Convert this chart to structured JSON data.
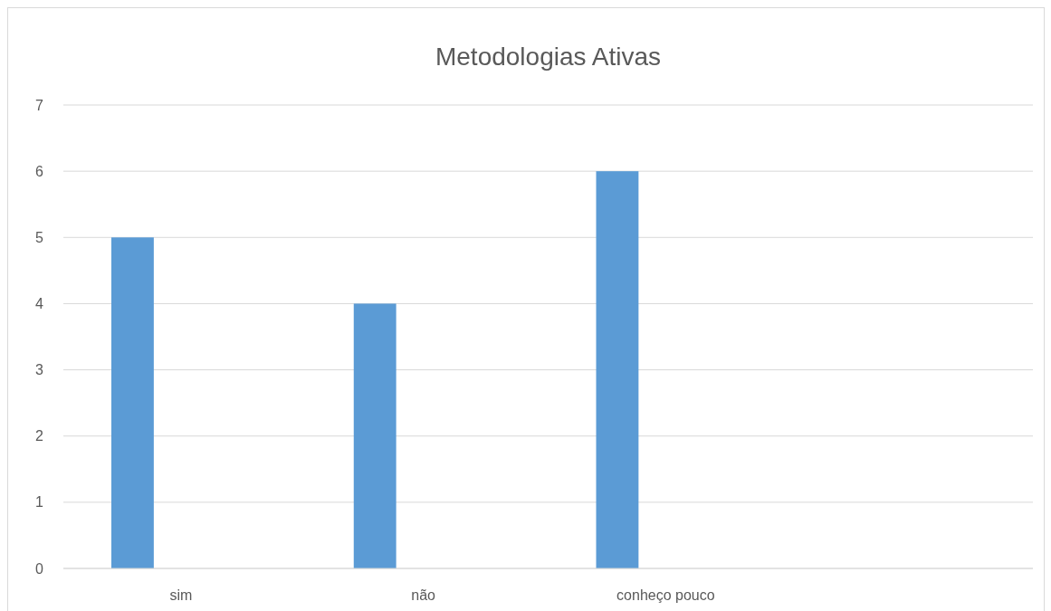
{
  "chart_data": {
    "type": "bar",
    "title": "Metodologias Ativas",
    "categories": [
      "sim",
      "não",
      "conheço pouco",
      null
    ],
    "values": [
      5,
      4,
      6,
      null
    ],
    "color": "#5b9bd5",
    "ylim": [
      0,
      7
    ],
    "yticks": [
      0,
      1,
      2,
      3,
      4,
      5,
      6,
      7
    ],
    "grid": "y"
  }
}
